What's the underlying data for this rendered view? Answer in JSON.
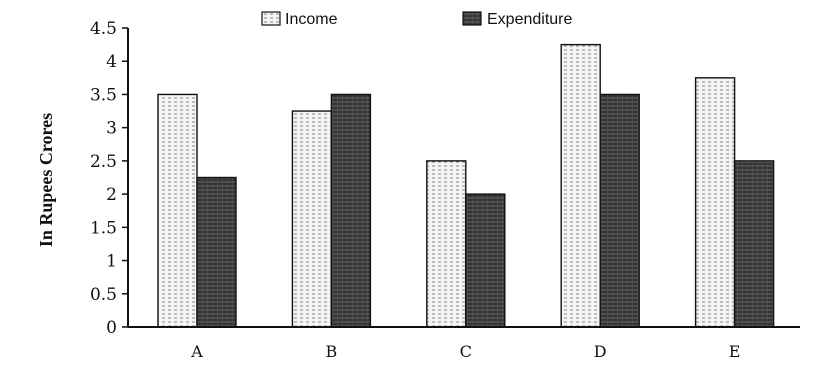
{
  "chart_data": {
    "type": "bar",
    "categories": [
      "A",
      "B",
      "C",
      "D",
      "E"
    ],
    "series": [
      {
        "name": "Income",
        "values": [
          3.5,
          3.25,
          2.5,
          4.25,
          3.75
        ],
        "pattern": "light-dotted"
      },
      {
        "name": "Expenditure",
        "values": [
          2.25,
          3.5,
          2.0,
          3.5,
          2.5
        ],
        "pattern": "dark-crosshatch"
      }
    ],
    "ylabel": "In Rupees Crores",
    "ylim": [
      0,
      4.5
    ],
    "yticks": [
      "0",
      "0.5",
      "1",
      "1.5",
      "2",
      "2.5",
      "3",
      "3.5",
      "4",
      "4.5"
    ],
    "grid": false,
    "legend_position": "top-center",
    "colors": {
      "income_fill": "#f2f2f2",
      "expenditure_fill": "#3a3a3a",
      "axis": "#111111"
    }
  }
}
